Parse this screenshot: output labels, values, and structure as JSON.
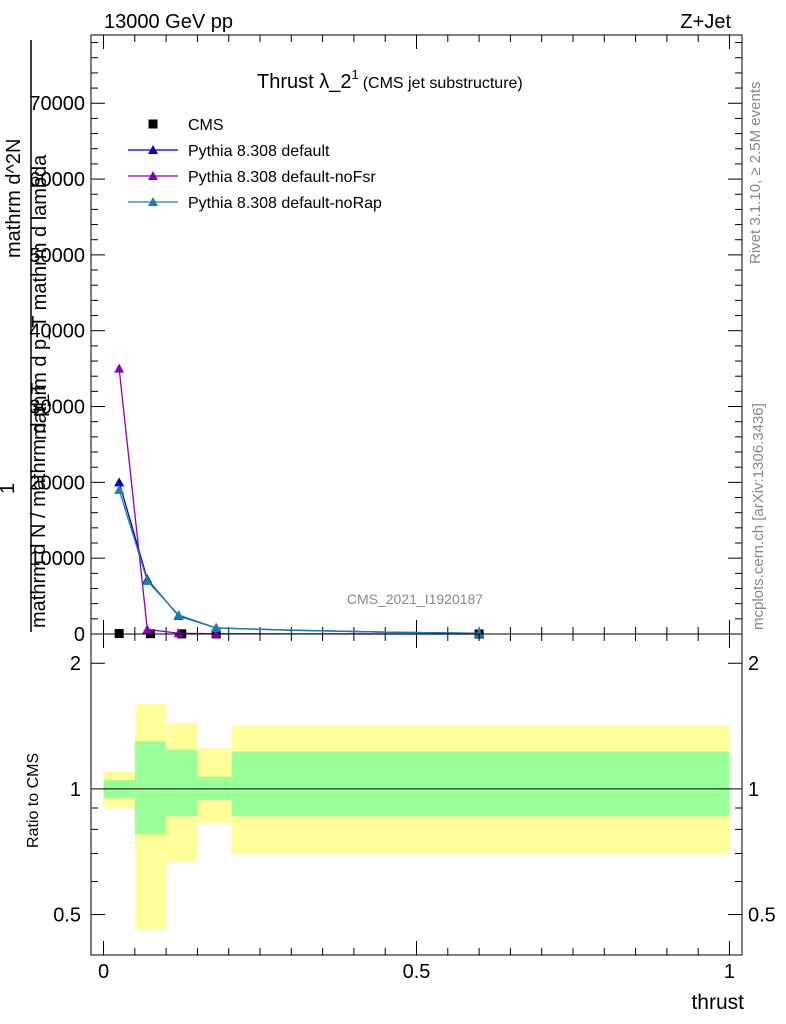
{
  "header": {
    "left": "13000 GeV pp",
    "right": "Z+Jet"
  },
  "side": {
    "rivet": "Rivet 3.1.10, ≥ 2.5M events",
    "mcplots": "mcplots.cern.ch [arXiv:1306.3436]"
  },
  "main": {
    "title_main": "Thrust λ_2",
    "title_sup": "1",
    "title_note": "(CMS jet substructure)",
    "watermark": "CMS_2021_I1920187",
    "ylabel_lines": [
      "mathrm d^2N",
      "mathrm d p_T mathrm d lambda",
      "1",
      "mathrm d N / mathrm d p_T"
    ]
  },
  "ratio": {
    "ylabel": "Ratio to CMS"
  },
  "colors": {
    "cms": "#000000",
    "default": "#0000cc",
    "noFsr": "#8800bb",
    "noRap": "#1a7fb0",
    "band_inner": "#99ff99",
    "band_outer": "#ffff99"
  },
  "chart_data": [
    {
      "type": "line",
      "title": "Thrust λ_2^1 (CMS jet substructure)",
      "xlabel": "thrust",
      "ylabel": "mathrm d^2N / mathrm d p_T mathrm d lambda · 1 / (mathrm d N / mathrm d p_T)",
      "xlim": [
        -0.02,
        1.02
      ],
      "ylim": [
        0,
        79000
      ],
      "yticks": [
        0,
        10000,
        20000,
        30000,
        40000,
        50000,
        60000,
        70000
      ],
      "ytick_labels": [
        "0",
        "10000",
        "20000",
        "30000",
        "40000",
        "50000",
        "60000",
        "70000"
      ],
      "legend_position": "top-left",
      "series": [
        {
          "name": "CMS",
          "marker": "square",
          "color": "#000000",
          "x": [
            0.025,
            0.075,
            0.125,
            0.18,
            0.6
          ],
          "y": [
            60,
            40,
            20,
            10,
            5
          ]
        },
        {
          "name": "Pythia 8.308 default",
          "marker": "triangle",
          "color": "#0000cc",
          "x": [
            0.025,
            0.07,
            0.12,
            0.18,
            0.3,
            0.45,
            0.6
          ],
          "y": [
            20000,
            7200,
            2400,
            800,
            500,
            250,
            100
          ]
        },
        {
          "name": "Pythia 8.308 default-noFsr",
          "marker": "triangle",
          "color": "#8800bb",
          "x": [
            0.025,
            0.07,
            0.12,
            0.18,
            0.3,
            0.45,
            0.6
          ],
          "y": [
            35000,
            600,
            100,
            30,
            20,
            10,
            5
          ]
        },
        {
          "name": "Pythia 8.308 default-noRap",
          "marker": "triangle",
          "color": "#1a7fb0",
          "x": [
            0.025,
            0.07,
            0.12,
            0.18,
            0.3,
            0.45,
            0.6
          ],
          "y": [
            19000,
            7000,
            2500,
            800,
            500,
            250,
            100
          ]
        }
      ]
    },
    {
      "type": "area",
      "title": "",
      "xlabel": "thrust",
      "ylabel": "Ratio to CMS",
      "xlim": [
        -0.02,
        1.02
      ],
      "ylim": [
        0.4,
        2.35
      ],
      "yticks": [
        0.5,
        1,
        2
      ],
      "ytick_labels": [
        "0.5",
        "1",
        "2"
      ],
      "xticks": [
        0,
        0.5,
        1
      ],
      "xtick_labels": [
        "0",
        "0.5",
        "1"
      ],
      "reference_line": 1,
      "bins": [
        {
          "x0": 0.0,
          "x1": 0.05,
          "inner": [
            0.95,
            1.05
          ],
          "outer": [
            0.9,
            1.1
          ]
        },
        {
          "x0": 0.05,
          "x1": 0.1,
          "inner": [
            0.78,
            1.3
          ],
          "outer": [
            0.46,
            1.6
          ]
        },
        {
          "x0": 0.1,
          "x1": 0.15,
          "inner": [
            0.86,
            1.24
          ],
          "outer": [
            0.67,
            1.44
          ]
        },
        {
          "x0": 0.15,
          "x1": 0.205,
          "inner": [
            0.94,
            1.07
          ],
          "outer": [
            0.83,
            1.25
          ]
        },
        {
          "x0": 0.205,
          "x1": 1.0,
          "inner": [
            0.86,
            1.23
          ],
          "outer": [
            0.7,
            1.42
          ]
        }
      ]
    }
  ]
}
